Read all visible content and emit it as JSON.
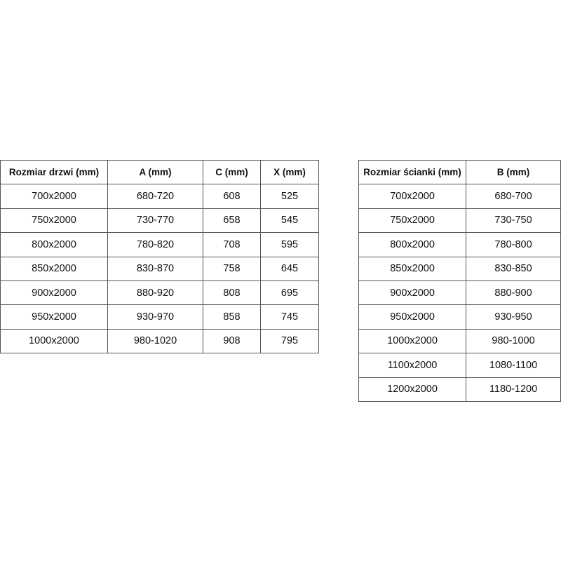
{
  "door_table": {
    "headers": [
      "Rozmiar drzwi (mm)",
      "A (mm)",
      "C (mm)",
      "X (mm)"
    ],
    "rows": [
      [
        "700x2000",
        "680-720",
        "608",
        "525"
      ],
      [
        "750x2000",
        "730-770",
        "658",
        "545"
      ],
      [
        "800x2000",
        "780-820",
        "708",
        "595"
      ],
      [
        "850x2000",
        "830-870",
        "758",
        "645"
      ],
      [
        "900x2000",
        "880-920",
        "808",
        "695"
      ],
      [
        "950x2000",
        "930-970",
        "858",
        "745"
      ],
      [
        "1000x2000",
        "980-1020",
        "908",
        "795"
      ]
    ]
  },
  "wall_table": {
    "headers": [
      "Rozmiar ścianki (mm)",
      "B (mm)"
    ],
    "rows": [
      [
        "700x2000",
        "680-700"
      ],
      [
        "750x2000",
        "730-750"
      ],
      [
        "800x2000",
        "780-800"
      ],
      [
        "850x2000",
        "830-850"
      ],
      [
        "900x2000",
        "880-900"
      ],
      [
        "950x2000",
        "930-950"
      ],
      [
        "1000x2000",
        "980-1000"
      ],
      [
        "1100x2000",
        "1080-1100"
      ],
      [
        "1200x2000",
        "1180-1200"
      ]
    ]
  }
}
